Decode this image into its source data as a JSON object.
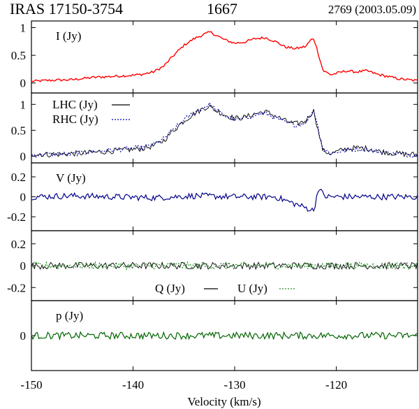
{
  "header": {
    "source": "IRAS 17150-3754",
    "frequency": "1667",
    "observation": "2769 (2003.05.09)"
  },
  "colors": {
    "I": "#ff0000",
    "LHC": "#000000",
    "RHC": "#0000aa",
    "V": "#00008b",
    "Q": "#000000",
    "U": "#228b22",
    "p": "#006400"
  },
  "chart_data": [
    {
      "type": "line",
      "label": "I (Jy)",
      "xlim": [
        -150,
        -112
      ],
      "ylim": [
        -0.18,
        1.12
      ],
      "yticks": [
        {
          "v": 0,
          "t": "0"
        },
        {
          "v": 0.5,
          "t": "0.5"
        },
        {
          "v": 1,
          "t": "1"
        }
      ],
      "series": [
        {
          "key": "I",
          "points": [
            [
              -150,
              0.03
            ],
            [
              -148,
              0.05
            ],
            [
              -146,
              0.06
            ],
            [
              -144,
              0.1
            ],
            [
              -142,
              0.12
            ],
            [
              -140,
              0.14
            ],
            [
              -139,
              0.16
            ],
            [
              -138,
              0.2
            ],
            [
              -137,
              0.3
            ],
            [
              -136,
              0.5
            ],
            [
              -135,
              0.68
            ],
            [
              -134,
              0.8
            ],
            [
              -133,
              0.88
            ],
            [
              -132.4,
              0.92
            ],
            [
              -132,
              0.88
            ],
            [
              -131,
              0.78
            ],
            [
              -130,
              0.72
            ],
            [
              -129,
              0.74
            ],
            [
              -128,
              0.8
            ],
            [
              -127,
              0.82
            ],
            [
              -126,
              0.75
            ],
            [
              -125,
              0.65
            ],
            [
              -124,
              0.62
            ],
            [
              -123,
              0.66
            ],
            [
              -122.5,
              0.78
            ],
            [
              -122.2,
              0.8
            ],
            [
              -121.8,
              0.55
            ],
            [
              -121.3,
              0.22
            ],
            [
              -120.5,
              0.15
            ],
            [
              -119,
              0.22
            ],
            [
              -118,
              0.2
            ],
            [
              -117,
              0.22
            ],
            [
              -116,
              0.16
            ],
            [
              -114,
              0.08
            ],
            [
              -112,
              0.04
            ]
          ]
        }
      ]
    },
    {
      "type": "line",
      "label": "",
      "xlim": [
        -150,
        -112
      ],
      "ylim": [
        -0.13,
        1.22
      ],
      "yticks": [
        {
          "v": 0,
          "t": "0"
        },
        {
          "v": 0.5,
          "t": "0.5"
        },
        {
          "v": 1,
          "t": "1"
        }
      ],
      "series": [
        {
          "key": "LHC",
          "name": "LHC (Jy)",
          "points": [
            [
              -150,
              0.04
            ],
            [
              -148,
              0.03
            ],
            [
              -146,
              0.05
            ],
            [
              -144,
              0.07
            ],
            [
              -142,
              0.1
            ],
            [
              -140,
              0.13
            ],
            [
              -139,
              0.15
            ],
            [
              -138,
              0.2
            ],
            [
              -137,
              0.3
            ],
            [
              -136,
              0.5
            ],
            [
              -135,
              0.68
            ],
            [
              -134,
              0.82
            ],
            [
              -133,
              0.93
            ],
            [
              -132.5,
              0.97
            ],
            [
              -132,
              0.9
            ],
            [
              -131,
              0.8
            ],
            [
              -130,
              0.73
            ],
            [
              -129,
              0.75
            ],
            [
              -128,
              0.82
            ],
            [
              -127,
              0.86
            ],
            [
              -126,
              0.78
            ],
            [
              -125,
              0.68
            ],
            [
              -124,
              0.62
            ],
            [
              -123,
              0.68
            ],
            [
              -122.5,
              0.82
            ],
            [
              -122.2,
              0.88
            ],
            [
              -121.8,
              0.5
            ],
            [
              -121.3,
              0.1
            ],
            [
              -120.5,
              0.05
            ],
            [
              -119,
              0.14
            ],
            [
              -118,
              0.16
            ],
            [
              -117,
              0.15
            ],
            [
              -116,
              0.1
            ],
            [
              -114,
              0.05
            ],
            [
              -112,
              0.03
            ]
          ]
        },
        {
          "key": "RHC",
          "name": "RHC (Jy)",
          "points": [
            [
              -150,
              0.02
            ],
            [
              -148,
              0.04
            ],
            [
              -146,
              0.04
            ],
            [
              -144,
              0.09
            ],
            [
              -142,
              0.12
            ],
            [
              -140,
              0.15
            ],
            [
              -139,
              0.17
            ],
            [
              -138,
              0.22
            ],
            [
              -137,
              0.33
            ],
            [
              -136,
              0.52
            ],
            [
              -135,
              0.7
            ],
            [
              -134,
              0.84
            ],
            [
              -133,
              0.95
            ],
            [
              -132.5,
              1.0
            ],
            [
              -132,
              0.92
            ],
            [
              -131,
              0.78
            ],
            [
              -130,
              0.7
            ],
            [
              -129,
              0.73
            ],
            [
              -128,
              0.8
            ],
            [
              -127,
              0.83
            ],
            [
              -126,
              0.74
            ],
            [
              -125,
              0.65
            ],
            [
              -124,
              0.6
            ],
            [
              -123,
              0.66
            ],
            [
              -122.5,
              0.8
            ],
            [
              -122.2,
              0.9
            ],
            [
              -121.8,
              0.55
            ],
            [
              -121.3,
              0.12
            ],
            [
              -120.5,
              0.06
            ],
            [
              -119,
              0.12
            ],
            [
              -118,
              0.14
            ],
            [
              -117,
              0.13
            ],
            [
              -116,
              0.09
            ],
            [
              -114,
              0.04
            ],
            [
              -112,
              0.02
            ]
          ]
        }
      ]
    },
    {
      "type": "line",
      "label": "V (Jy)",
      "xlim": [
        -150,
        -112
      ],
      "ylim": [
        -0.34,
        0.34
      ],
      "yticks": [
        {
          "v": -0.2,
          "t": "-0.2"
        },
        {
          "v": 0,
          "t": "0"
        },
        {
          "v": 0.2,
          "t": "0.2"
        }
      ],
      "series": [
        {
          "key": "V",
          "points": [
            [
              -150,
              0.0
            ],
            [
              -146,
              0.01
            ],
            [
              -142,
              0.0
            ],
            [
              -138,
              -0.01
            ],
            [
              -134,
              0.01
            ],
            [
              -130,
              0.0
            ],
            [
              -126,
              0.0
            ],
            [
              -122.2,
              -0.14
            ],
            [
              -121.8,
              0.08
            ],
            [
              -121,
              0.0
            ],
            [
              -116,
              0.0
            ],
            [
              -112,
              0.0
            ]
          ]
        }
      ]
    },
    {
      "type": "line",
      "label": "",
      "xlim": [
        -150,
        -112
      ],
      "ylim": [
        -0.32,
        0.32
      ],
      "yticks": [
        {
          "v": -0.2,
          "t": "-0.2"
        },
        {
          "v": 0,
          "t": "0"
        },
        {
          "v": 0.2,
          "t": "0.2"
        }
      ],
      "series": [
        {
          "key": "Q",
          "name": "Q (Jy)",
          "points": [
            [
              -150,
              0.0
            ],
            [
              -140,
              0.0
            ],
            [
              -130,
              0.0
            ],
            [
              -120,
              0.0
            ],
            [
              -112,
              0.0
            ]
          ]
        },
        {
          "key": "U",
          "name": "U (Jy)",
          "points": [
            [
              -150,
              0.0
            ],
            [
              -140,
              0.0
            ],
            [
              -130,
              0.0
            ],
            [
              -120,
              0.0
            ],
            [
              -112,
              0.0
            ]
          ]
        }
      ]
    },
    {
      "type": "line",
      "label": "p (Jy)",
      "xlim": [
        -150,
        -112
      ],
      "ylim": [
        -0.3,
        0.3
      ],
      "yticks": [
        {
          "v": 0,
          "t": "0"
        }
      ],
      "series": [
        {
          "key": "p",
          "points": [
            [
              -150,
              0.0
            ],
            [
              -140,
              0.0
            ],
            [
              -130,
              0.0
            ],
            [
              -120,
              0.0
            ],
            [
              -112,
              0.0
            ]
          ]
        }
      ]
    }
  ],
  "xaxis": {
    "label": "Velocity (km/s)",
    "ticks": [
      {
        "v": -150,
        "t": "-150"
      },
      {
        "v": -140,
        "t": "-140"
      },
      {
        "v": -130,
        "t": "-130"
      },
      {
        "v": -120,
        "t": "-120"
      }
    ]
  }
}
